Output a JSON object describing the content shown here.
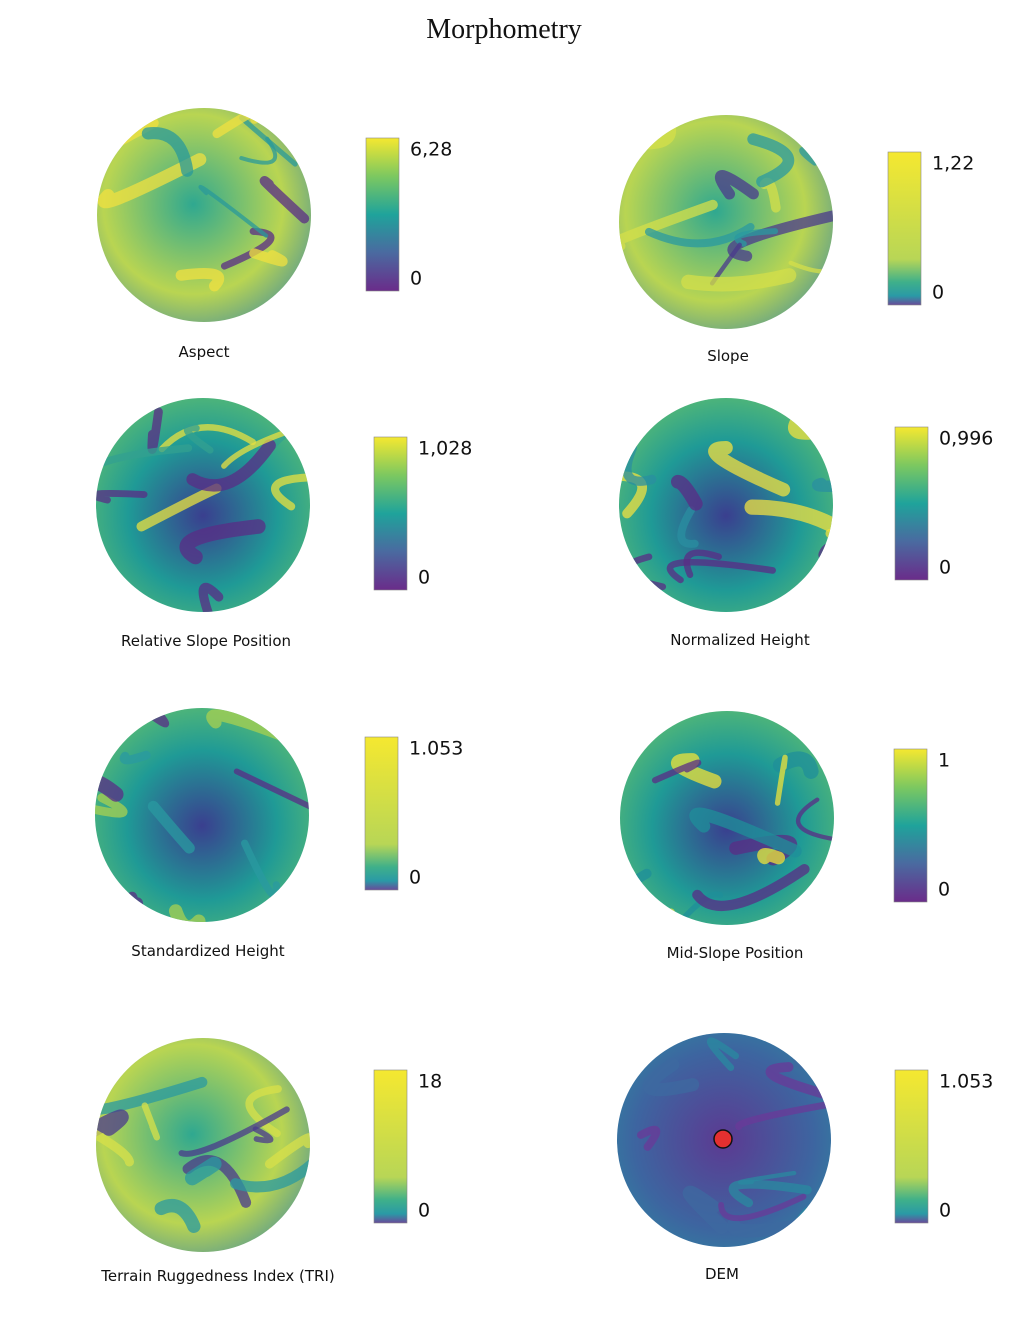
{
  "title": "Morphometry",
  "panels": [
    {
      "caption": "Aspect",
      "max_label": "6,28",
      "min_label": "0"
    },
    {
      "caption": "Slope",
      "max_label": "1,22",
      "min_label": "0"
    },
    {
      "caption": "Relative Slope Position",
      "max_label": "1,028",
      "min_label": "0"
    },
    {
      "caption": "Normalized Height",
      "max_label": "0,996",
      "min_label": "0"
    },
    {
      "caption": "Standardized Height",
      "max_label": "1.053",
      "min_label": "0"
    },
    {
      "caption": "Mid-Slope Position",
      "max_label": "1",
      "min_label": "0"
    },
    {
      "caption": "Terrain Ruggedness Index (TRI)",
      "max_label": "18",
      "min_label": "0"
    },
    {
      "caption": "DEM",
      "max_label": "1.053",
      "min_label": "0"
    }
  ]
}
